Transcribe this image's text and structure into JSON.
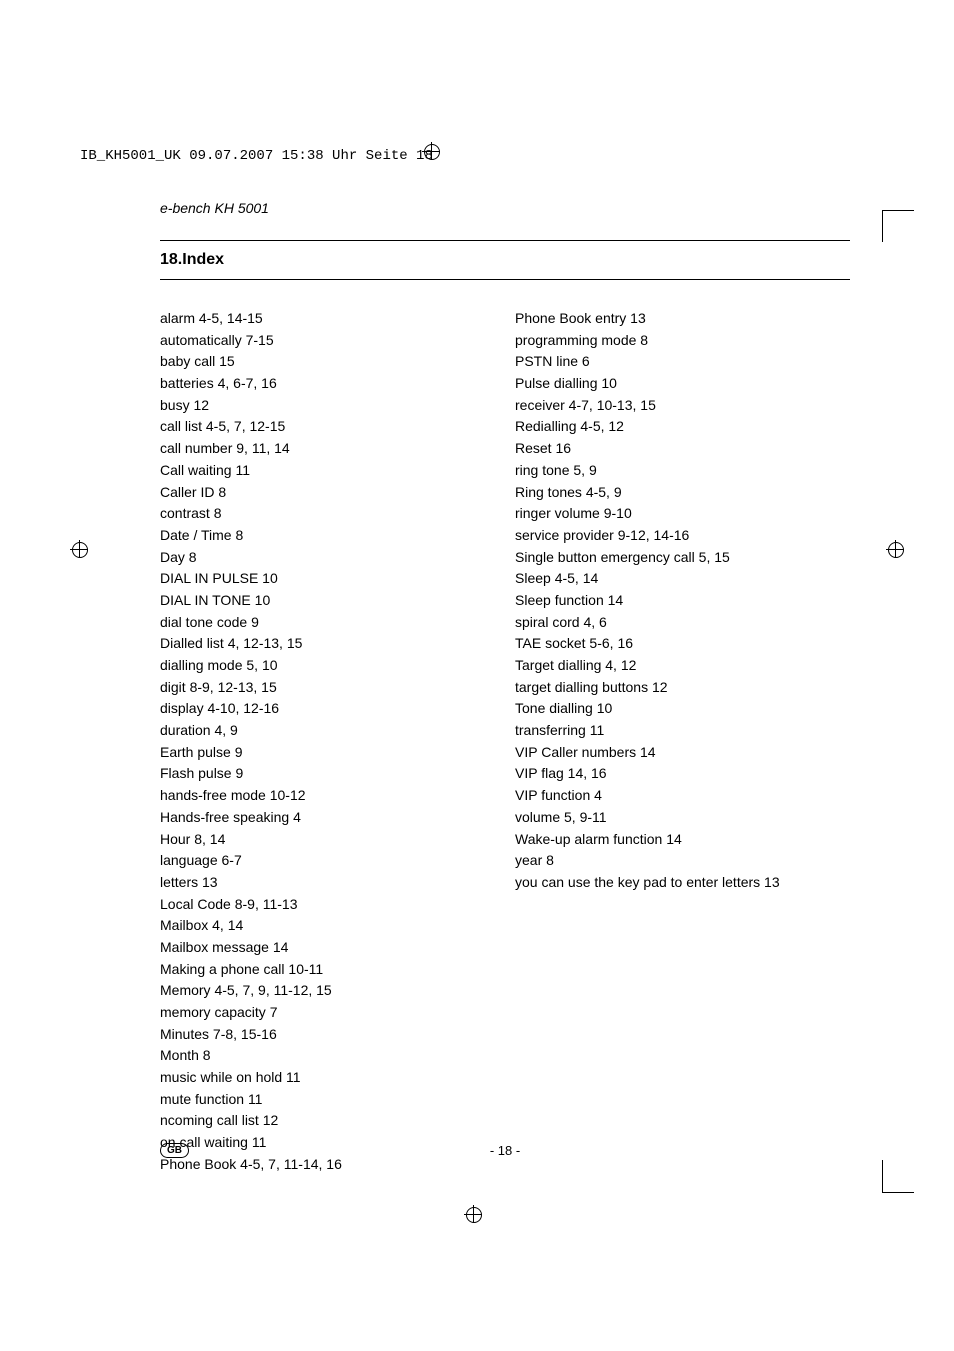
{
  "printmark": {
    "text": "IB_KH5001_UK  09.07.2007  15:38 Uhr  Seite 18"
  },
  "header": {
    "product": "e-bench KH 5001"
  },
  "section": {
    "title": "18.Index"
  },
  "index": {
    "col1": [
      "alarm 4-5, 14-15",
      "automatically 7-15",
      "baby call 15",
      "batteries 4, 6-7, 16",
      "busy 12",
      "call list 4-5, 7, 12-15",
      "call number 9, 11, 14",
      "Call waiting 11",
      "Caller ID 8",
      "contrast 8",
      "Date / Time 8",
      "Day 8",
      "DIAL IN PULSE 10",
      "DIAL IN TONE 10",
      "dial tone code 9",
      "Dialled list 4, 12-13, 15",
      "dialling mode 5, 10",
      "digit 8-9, 12-13, 15",
      "display 4-10, 12-16",
      "duration 4, 9",
      "Earth pulse 9",
      "Flash pulse 9",
      "hands-free mode 10-12",
      "Hands-free speaking 4",
      "Hour 8, 14",
      "language 6-7",
      "letters 13",
      "Local Code 8-9, 11-13",
      "Mailbox 4, 14",
      "Mailbox message 14",
      "Making a phone call 10-11",
      "Memory 4-5, 7, 9, 11-12, 15",
      "memory capacity 7",
      "Minutes 7-8, 15-16",
      "Month 8",
      "music while on hold 11",
      "mute function 11",
      "ncoming call list 12",
      "on call waiting 11",
      "Phone Book 4-5, 7, 11-14, 16"
    ],
    "col2": [
      "Phone Book entry 13",
      "programming  mode 8",
      "PSTN line 6",
      "Pulse dialling 10",
      "receiver 4-7, 10-13, 15",
      "Redialling 4-5, 12",
      "Reset 16",
      "ring tone 5, 9",
      "Ring tones 4-5, 9",
      "ringer volume 9-10",
      "service provider 9-12, 14-16",
      "Single button emergency call 5, 15",
      "Sleep 4-5, 14",
      "Sleep function 14",
      "spiral cord 4, 6",
      "TAE socket 5-6, 16",
      "Target dialling 4, 12",
      "target dialling buttons 12",
      "Tone dialling 10",
      "transferring 11",
      "VIP Caller numbers 14",
      "VIP flag 14, 16",
      "VIP function 4",
      "volume 5, 9-11",
      "Wake-up alarm function 14",
      "year 8",
      "you can use the key pad to enter letters 13"
    ]
  },
  "footer": {
    "lang": "GB",
    "page": "- 18 -"
  }
}
